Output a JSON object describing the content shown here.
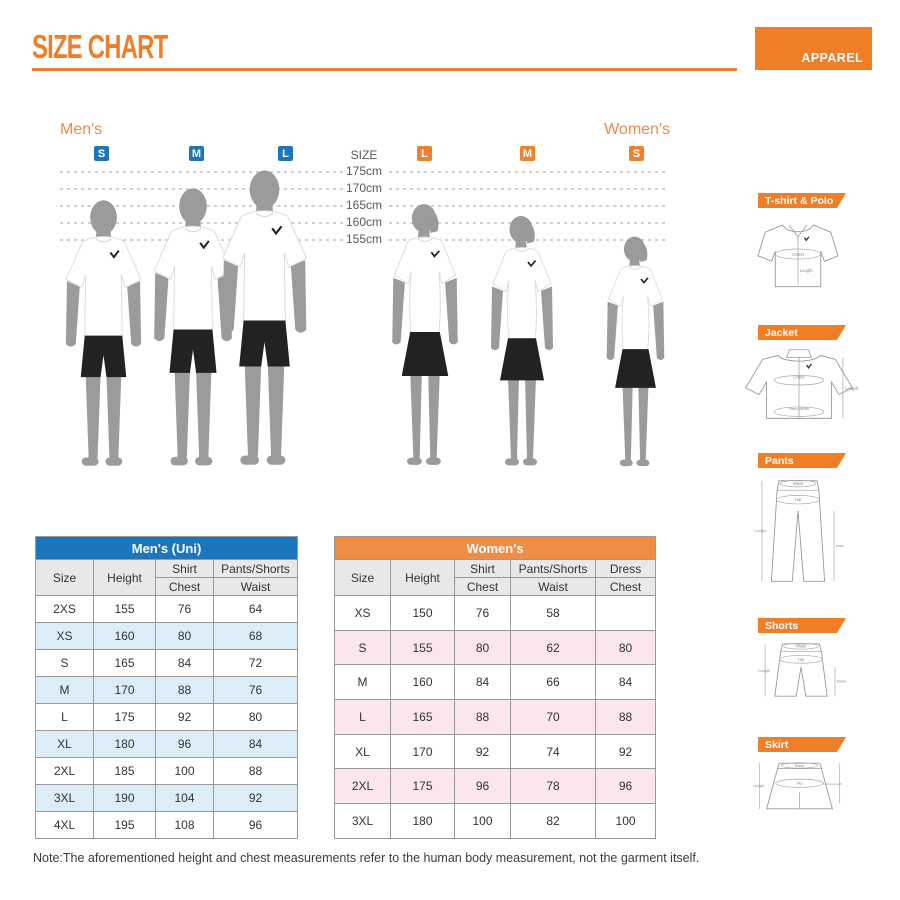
{
  "header": {
    "title": "SIZE CHART",
    "tag": "APPAREL"
  },
  "groups": {
    "mens_label": "Men's",
    "womens_label": "Women's",
    "mens_badges": [
      "S",
      "M",
      "L"
    ],
    "womens_badges": [
      "L",
      "M",
      "S"
    ]
  },
  "scale": {
    "label": "SIZE",
    "ticks": [
      "175cm",
      "170cm",
      "165cm",
      "160cm",
      "155cm"
    ]
  },
  "sidebar": {
    "items": [
      {
        "label": "T-shirt & Polo",
        "measurements": {
          "chest": "Chest",
          "length": "Length"
        }
      },
      {
        "label": "Jacket",
        "measurements": {
          "chest": "Chest",
          "hem_width": "Hem Width",
          "length": "Length"
        }
      },
      {
        "label": "Pants",
        "measurements": {
          "waist": "Waist",
          "hip": "Hip",
          "length": "Length",
          "inseam": "Inseam"
        }
      },
      {
        "label": "Shorts",
        "measurements": {
          "waist": "Waist",
          "hip": "Hip",
          "length": "Length",
          "inseam": "Inseam"
        }
      },
      {
        "label": "Skirt",
        "measurements": {
          "waist": "Waist",
          "hip": "Hip",
          "length": "Length",
          "lining_length": "Lining Length"
        }
      }
    ]
  },
  "mens_table": {
    "title": "Men's (Uni)",
    "headers": {
      "size": "Size",
      "height": "Height",
      "shirt": "Shirt",
      "shirt_sub": "Chest",
      "pants": "Pants/Shorts",
      "pants_sub": "Waist"
    },
    "rows": [
      [
        "2XS",
        "155",
        "76",
        "64"
      ],
      [
        "XS",
        "160",
        "80",
        "68"
      ],
      [
        "S",
        "165",
        "84",
        "72"
      ],
      [
        "M",
        "170",
        "88",
        "76"
      ],
      [
        "L",
        "175",
        "92",
        "80"
      ],
      [
        "XL",
        "180",
        "96",
        "84"
      ],
      [
        "2XL",
        "185",
        "100",
        "88"
      ],
      [
        "3XL",
        "190",
        "104",
        "92"
      ],
      [
        "4XL",
        "195",
        "108",
        "96"
      ]
    ]
  },
  "womens_table": {
    "title": "Women's",
    "headers": {
      "size": "Size",
      "height": "Height",
      "shirt": "Shirt",
      "shirt_sub": "Chest",
      "pants": "Pants/Shorts",
      "pants_sub": "Waist",
      "dress": "Dress",
      "dress_sub": "Chest"
    },
    "rows": [
      [
        "XS",
        "150",
        "76",
        "58",
        ""
      ],
      [
        "S",
        "155",
        "80",
        "62",
        "80"
      ],
      [
        "M",
        "160",
        "84",
        "66",
        "84"
      ],
      [
        "L",
        "165",
        "88",
        "70",
        "88"
      ],
      [
        "XL",
        "170",
        "92",
        "74",
        "92"
      ],
      [
        "2XL",
        "175",
        "96",
        "78",
        "96"
      ],
      [
        "3XL",
        "180",
        "100",
        "82",
        "100"
      ]
    ]
  },
  "note": "Note:The aforementioned height and chest measurements refer to the human body measurement, not the garment itself.",
  "colors": {
    "orange": "#F07E26",
    "orange_table_header": "#F18C44",
    "orange_badge": "#F0802B",
    "orange_label": "#ED8A4D",
    "blue": "#1B76BC",
    "row_blue": "#DCEDF8",
    "row_pink": "#FBE6EE",
    "column_header_gray": "#E8E8E8",
    "table_border": "#999999",
    "silhouette_gray": "#9B9B9B"
  }
}
